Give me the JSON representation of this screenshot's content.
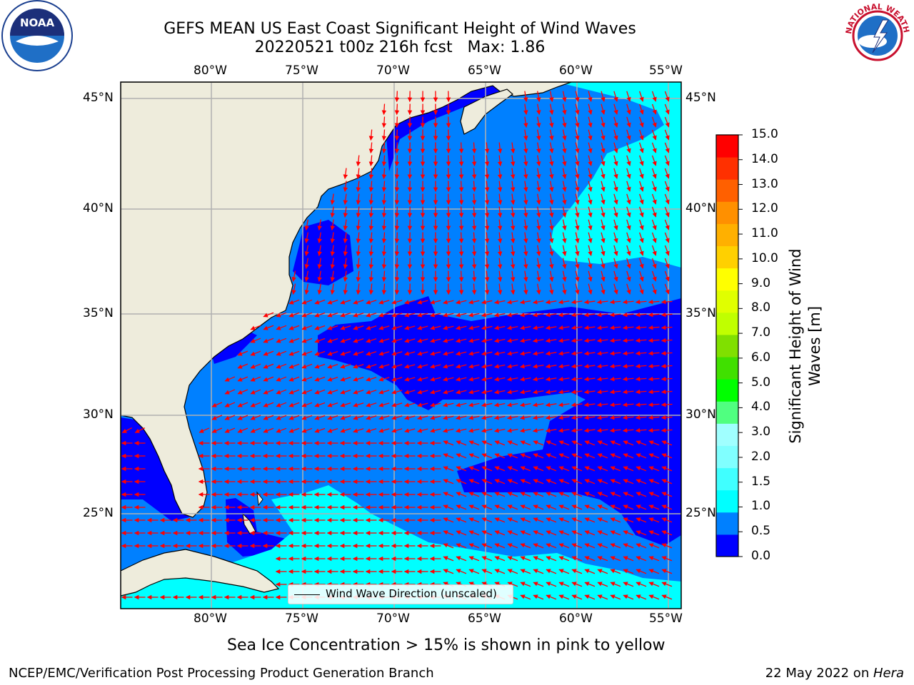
{
  "title": {
    "line1": "GEFS MEAN US East Coast Significant Height of Wind Waves",
    "line2": "20220521 t00z 216h fcst   Max: 1.86"
  },
  "map": {
    "lon_labels": [
      "80°W",
      "75°W",
      "70°W",
      "65°W",
      "60°W",
      "55°W"
    ],
    "lat_labels": [
      "45°N",
      "40°N",
      "35°N",
      "30°N",
      "25°N"
    ],
    "legend_label": "Wind Wave Direction (unscaled)",
    "colors": {
      "land": "#eeecdc",
      "ocean_low": "#0000ff",
      "ocean_mid": "#0080ff",
      "ocean_high": "#00ffff",
      "arrow": "#ff0000",
      "grid": "#b0b0b0"
    }
  },
  "colorbar": {
    "title_line1": "Significant Height of Wind",
    "title_line2": "Waves [m]",
    "ticks": [
      "15.0",
      "14.0",
      "13.0",
      "12.0",
      "11.0",
      "10.0",
      "9.0",
      "8.0",
      "7.0",
      "6.0",
      "5.0",
      "4.0",
      "3.0",
      "2.0",
      "1.5",
      "1.0",
      "0.5",
      "0.0"
    ],
    "colors": [
      "#0000ff",
      "#0080ff",
      "#00ffff",
      "#40ffff",
      "#80ffff",
      "#a0ffff",
      "#50ff80",
      "#00ff00",
      "#40e000",
      "#80e000",
      "#c0ff00",
      "#e0ff00",
      "#ffff00",
      "#ffd000",
      "#ffb000",
      "#ff9000",
      "#ff6000",
      "#ff3000",
      "#ff0000"
    ]
  },
  "footer": {
    "note": "Sea Ice Concentration > 15% is shown in pink to yellow",
    "left": "NCEP/EMC/Verification Post Processing Product Generation Branch",
    "right_date": "22 May 2022 on ",
    "right_host": "Hera"
  },
  "logos": {
    "left_name": "NOAA",
    "right_text": "NATIONAL WEATHER SERVICE"
  }
}
